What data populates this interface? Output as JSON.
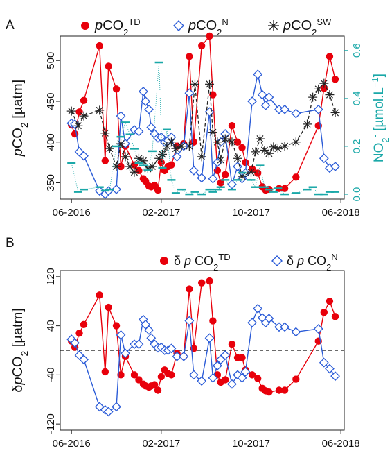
{
  "colors": {
    "td": "#e8000b",
    "n": "#2a5bd7",
    "sw": "#222222",
    "no2": "#1aa8a8"
  },
  "chart_data": [
    {
      "panel": "A",
      "type": "line",
      "x_ticks": [
        "06-2016",
        "02-2017",
        "10-2017",
        "06-2018"
      ],
      "ylabel_html": "<tspan font-style='italic'>p</tspan>CO<tspan baseline-shift='sub' font-size='14'>2</tspan> [µatm]",
      "ylim": [
        330,
        530
      ],
      "yticks": [
        350,
        400,
        450,
        500
      ],
      "y2label_html": "NO<tspan baseline-shift='sub' font-size='13'>2</tspan><tspan baseline-shift='super' font-size='13'>-</tspan> [µmol.L<tspan baseline-shift='super' font-size='13'>−1</tspan>]",
      "y2lim": [
        -0.02,
        0.66
      ],
      "y2ticks": [
        "0.0",
        "0.2",
        "0.4",
        "0.6"
      ],
      "legend": [
        {
          "key": "td",
          "html": "<tspan font-style='italic'>p</tspan>CO<tspan baseline-shift='sub' font-size='13'>2</tspan><tspan baseline-shift='super' font-size='13'>TD</tspan>"
        },
        {
          "key": "n",
          "html": "<tspan font-style='italic'>p</tspan>CO<tspan baseline-shift='sub' font-size='13'>2</tspan><tspan baseline-shift='super' font-size='13'>N</tspan>"
        },
        {
          "key": "sw",
          "html": "<tspan font-style='italic'>p</tspan>CO<tspan baseline-shift='sub' font-size='13'>2</tspan><tspan baseline-shift='super' font-size='13'>SW</tspan>"
        }
      ],
      "series": [
        {
          "key": "td",
          "name": "pCO2 TD",
          "x": [
            0.0,
            0.3,
            0.7,
            1.1,
            2.5,
            3.0,
            3.3,
            4.0,
            4.4,
            4.8,
            5.6,
            6.0,
            6.4,
            6.6,
            6.9,
            7.1,
            7.4,
            7.7,
            8.0,
            8.3,
            8.6,
            8.9,
            9.4,
            10.0,
            10.5,
            10.9,
            11.6,
            12.3,
            12.6,
            13.0,
            13.3,
            13.7,
            14.3,
            14.8,
            15.2,
            15.5,
            16.1,
            16.6,
            17.0,
            17.3,
            17.6,
            18.5,
            19.0,
            20.0,
            22.0,
            22.5,
            23.0,
            23.5
          ],
          "y": [
            421,
            410,
            437,
            451,
            518,
            377,
            493,
            465,
            370,
            395,
            372,
            365,
            355,
            352,
            346,
            345,
            347,
            341,
            375,
            365,
            370,
            372,
            395,
            398,
            505,
            400,
            518,
            530,
            458,
            365,
            350,
            360,
            420,
            400,
            393,
            375,
            367,
            362,
            345,
            341,
            342,
            343,
            343,
            357,
            420,
            466,
            505,
            477
          ]
        },
        {
          "key": "n",
          "name": "pCO2 N",
          "x": [
            0.0,
            0.3,
            0.7,
            1.1,
            2.5,
            3.0,
            3.3,
            4.0,
            4.4,
            4.8,
            5.6,
            6.0,
            6.4,
            6.6,
            6.9,
            7.1,
            7.4,
            7.7,
            8.0,
            8.3,
            8.6,
            8.9,
            9.4,
            10.0,
            10.5,
            10.9,
            11.6,
            12.3,
            12.6,
            13.0,
            13.3,
            13.7,
            14.3,
            14.8,
            15.2,
            15.5,
            16.1,
            16.6,
            17.0,
            17.3,
            17.6,
            18.5,
            19.0,
            20.0,
            22.0,
            22.5,
            23.0,
            23.5
          ],
          "y": [
            423,
            422,
            388,
            383,
            340,
            336,
            340,
            342,
            432,
            398,
            415,
            413,
            462,
            450,
            440,
            418,
            410,
            405,
            406,
            400,
            402,
            406,
            382,
            395,
            460,
            365,
            356,
            437,
            355,
            375,
            400,
            410,
            348,
            370,
            355,
            362,
            450,
            483,
            458,
            445,
            455,
            440,
            440,
            435,
            440,
            380,
            368,
            370
          ]
        },
        {
          "key": "sw",
          "name": "pCO2 SW",
          "x": [
            0.0,
            0.6,
            1.1,
            2.5,
            3.0,
            3.4,
            4.0,
            4.4,
            4.8,
            5.2,
            5.6,
            6.0,
            6.4,
            6.8,
            7.2,
            7.8,
            8.1,
            8.5,
            8.9,
            9.3,
            9.8,
            10.5,
            11.0,
            11.6,
            12.3,
            12.6,
            13.0,
            13.3,
            13.7,
            14.3,
            14.8,
            15.2,
            16.0,
            16.4,
            16.8,
            17.2,
            17.6,
            18.0,
            18.4,
            19.0,
            20.0,
            21.0,
            21.5,
            22.0,
            22.5,
            23.0,
            23.5
          ],
          "y": [
            438,
            420,
            432,
            439,
            411,
            392,
            370,
            398,
            382,
            370,
            363,
            380,
            377,
            367,
            370,
            380,
            385,
            395,
            400,
            392,
            395,
            395,
            471,
            382,
            471,
            412,
            400,
            378,
            404,
            400,
            380,
            358,
            363,
            388,
            404,
            390,
            386,
            394,
            392,
            395,
            400,
            422,
            455,
            465,
            472,
            458,
            436
          ]
        },
        {
          "key": "no2",
          "name": "NO2-",
          "style": "dash-points",
          "x": [
            0.0,
            0.6,
            1.1,
            2.5,
            3.0,
            3.4,
            4.0,
            4.4,
            4.8,
            5.2,
            5.6,
            6.0,
            6.4,
            6.8,
            7.2,
            7.8,
            8.1,
            8.5,
            8.9,
            9.3,
            9.8,
            10.5,
            11.0,
            11.6,
            12.3,
            12.6,
            13.0,
            13.3,
            13.7,
            14.3,
            14.8,
            15.2,
            16.0,
            16.4,
            16.8,
            17.2,
            17.6,
            18.0,
            18.4,
            19.0,
            20.0,
            21.0,
            21.5,
            22.0,
            22.5,
            23.0,
            23.5
          ],
          "y2": [
            0.13,
            0.01,
            0.02,
            0.03,
            0.015,
            0.02,
            0.2,
            0.24,
            0.3,
            0.25,
            0.19,
            0.13,
            0.12,
            0.1,
            0.18,
            0.55,
            0.11,
            0.27,
            0.06,
            0.005,
            0.02,
            0.0,
            0.01,
            0.0,
            0.02,
            0.01,
            0.02,
            0.03,
            0.06,
            0.02,
            0.06,
            0.09,
            0.06,
            0.03,
            0.12,
            0.03,
            0.02,
            0.01,
            0.025,
            0.0,
            0.005,
            0.02,
            0.03,
            0.0,
            0.0,
            0.01,
            0.01
          ]
        }
      ]
    },
    {
      "panel": "B",
      "type": "line",
      "x_ticks": [
        "06-2016",
        "02-2017",
        "10-2017",
        "06-2018"
      ],
      "ylabel_html": "δ<tspan font-style='italic'>p</tspan>CO<tspan baseline-shift='sub' font-size='14'>2</tspan> [µatm]",
      "ylim": [
        -130,
        130
      ],
      "yticks": [
        "-120",
        "-40",
        "40",
        "120"
      ],
      "yticks_values": [
        -120,
        -40,
        40,
        120
      ],
      "hline": 0,
      "legend": [
        {
          "key": "td",
          "html": "δ <tspan font-style='italic'>p</tspan> CO<tspan baseline-shift='sub' font-size='13'>2</tspan><tspan baseline-shift='super' font-size='13'>TD</tspan>"
        },
        {
          "key": "n",
          "html": "δ <tspan font-style='italic'>p</tspan> CO<tspan baseline-shift='sub' font-size='13'>2</tspan><tspan baseline-shift='super' font-size='13'>N</tspan>"
        }
      ],
      "series": [
        {
          "key": "td",
          "name": "δpCO2 TD",
          "x": [
            0.0,
            0.3,
            0.7,
            1.1,
            2.5,
            3.0,
            3.3,
            4.0,
            4.4,
            4.8,
            5.6,
            6.0,
            6.4,
            6.6,
            6.9,
            7.1,
            7.4,
            7.7,
            8.0,
            8.3,
            8.6,
            8.9,
            9.4,
            10.0,
            10.5,
            10.9,
            11.6,
            12.3,
            12.6,
            13.0,
            13.3,
            13.7,
            14.3,
            14.8,
            15.2,
            15.5,
            16.1,
            16.6,
            17.0,
            17.3,
            17.6,
            18.5,
            19.0,
            20.0,
            22.0,
            22.5,
            23.0,
            23.5
          ],
          "y": [
            15,
            5,
            28,
            42,
            90,
            -35,
            70,
            40,
            -40,
            -10,
            -40,
            -48,
            -55,
            -58,
            -60,
            -58,
            -56,
            -65,
            -43,
            -32,
            -38,
            -40,
            -5,
            -10,
            100,
            3,
            110,
            113,
            48,
            -40,
            -52,
            -48,
            10,
            -12,
            -12,
            -32,
            -40,
            -46,
            -62,
            -66,
            -68,
            -65,
            -65,
            -47,
            15,
            62,
            80,
            55
          ]
        },
        {
          "key": "n",
          "name": "δpCO2 N",
          "x": [
            0.0,
            0.3,
            0.7,
            1.1,
            2.5,
            3.0,
            3.3,
            4.0,
            4.4,
            4.8,
            5.6,
            6.0,
            6.4,
            6.6,
            6.9,
            7.1,
            7.4,
            7.7,
            8.0,
            8.3,
            8.6,
            8.9,
            9.4,
            10.0,
            10.5,
            10.9,
            11.6,
            12.3,
            12.6,
            13.0,
            13.3,
            13.7,
            14.3,
            14.8,
            15.2,
            15.5,
            16.1,
            16.6,
            17.0,
            17.3,
            17.6,
            18.5,
            19.0,
            20.0,
            22.0,
            22.5,
            23.0,
            23.5
          ],
          "y": [
            18,
            12,
            -8,
            -15,
            -92,
            -97,
            -100,
            -92,
            25,
            -5,
            10,
            10,
            50,
            42,
            33,
            20,
            10,
            4,
            5,
            0,
            0,
            3,
            -10,
            -10,
            48,
            -40,
            -50,
            20,
            -45,
            -25,
            -15,
            -8,
            -55,
            -40,
            -45,
            -35,
            45,
            68,
            53,
            45,
            52,
            38,
            38,
            30,
            35,
            -20,
            -30,
            -42
          ]
        }
      ]
    }
  ]
}
